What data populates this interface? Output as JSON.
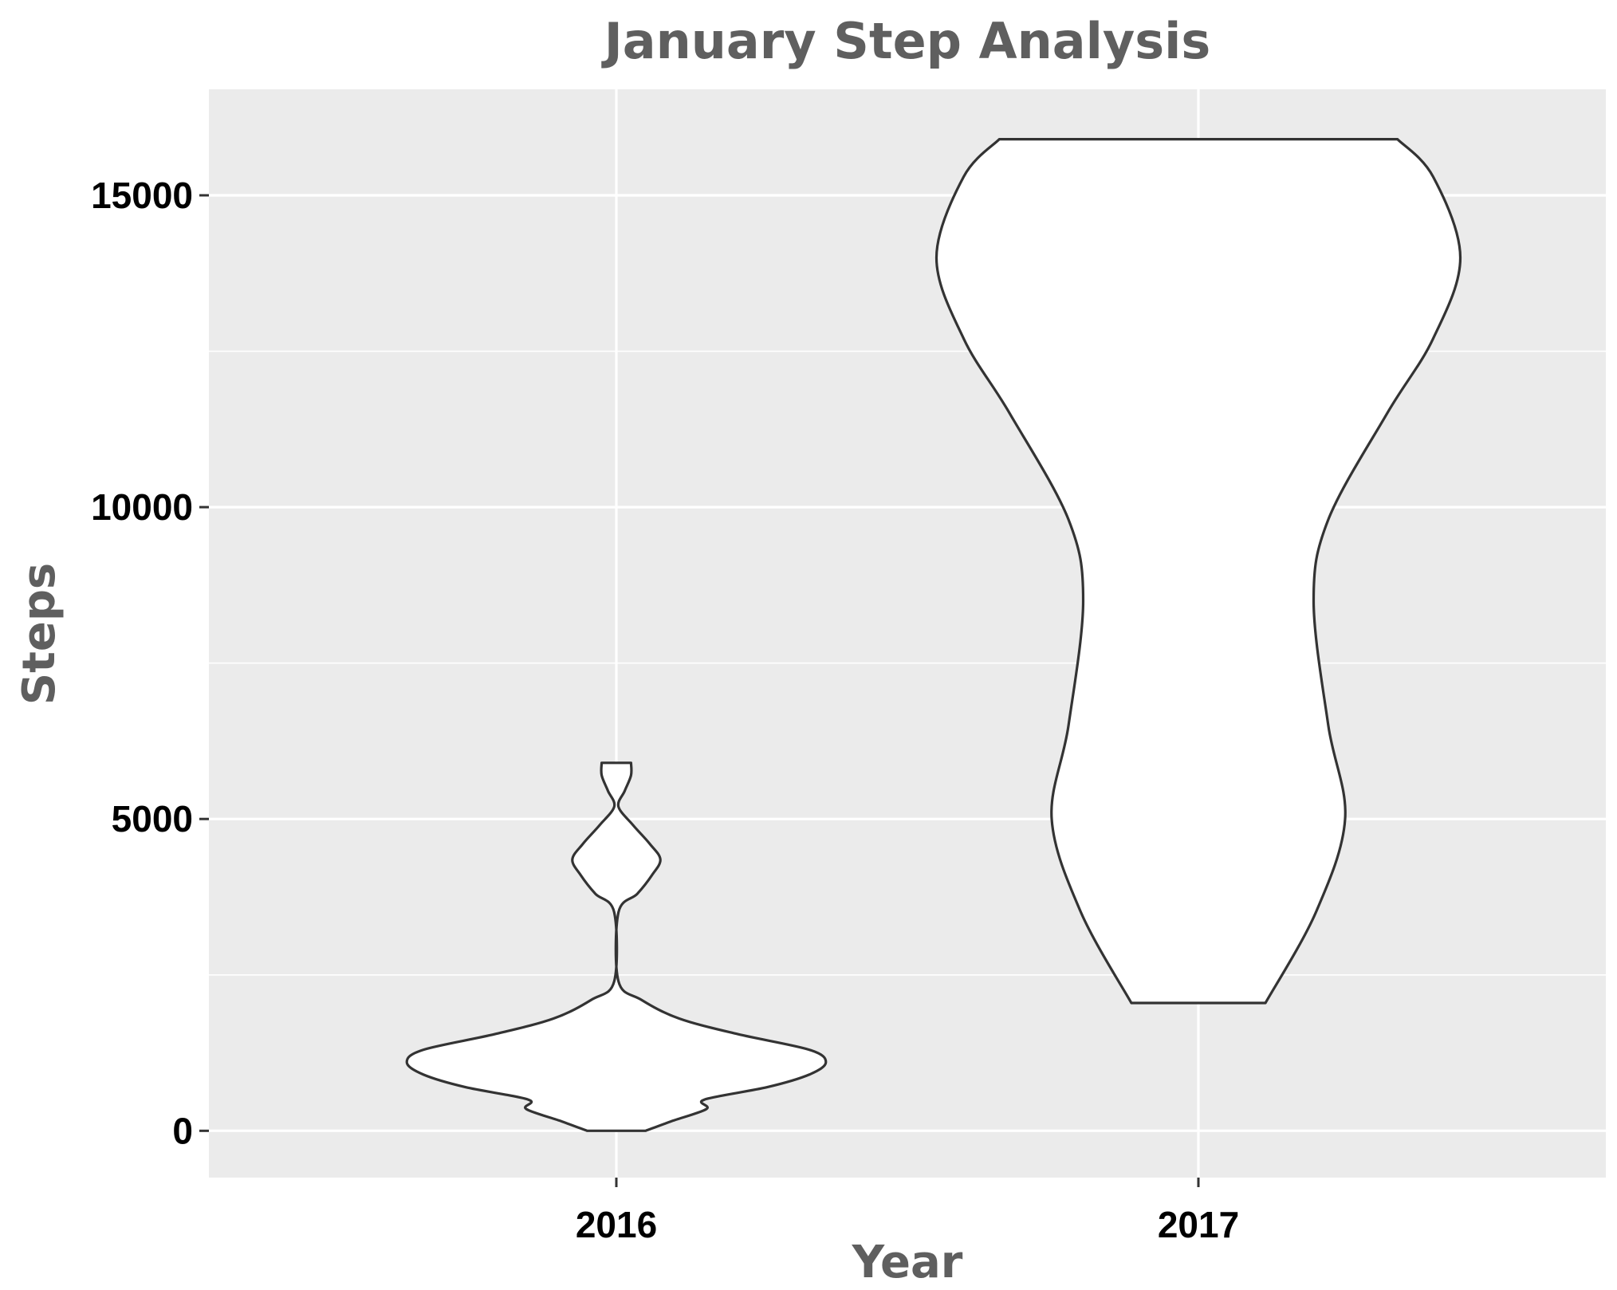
{
  "chart_data": {
    "type": "violin",
    "title": "January Step Analysis",
    "xlabel": "Year",
    "ylabel": "Steps",
    "categories": [
      "2016",
      "2017"
    ],
    "ylim": [
      -750,
      16700
    ],
    "yticks": [
      0,
      5000,
      10000,
      15000
    ],
    "grid": true,
    "legend": "none",
    "colors": {
      "panel_background": "#ebebeb",
      "grid": "#ffffff",
      "violin_fill": "#ffffff",
      "violin_outline": "#333333",
      "title_text": "#5f5f5f",
      "tick_text": "#000000"
    },
    "violins": [
      {
        "category": "2016",
        "min": 0,
        "max": 5900,
        "density_profile": [
          [
            0,
            0.14
          ],
          [
            150,
            0.26
          ],
          [
            350,
            0.43
          ],
          [
            500,
            0.42
          ],
          [
            700,
            0.72
          ],
          [
            900,
            0.92
          ],
          [
            1100,
            1.0
          ],
          [
            1300,
            0.92
          ],
          [
            1550,
            0.58
          ],
          [
            1800,
            0.3
          ],
          [
            2100,
            0.12
          ],
          [
            2400,
            0.01
          ],
          [
            3500,
            0.01
          ],
          [
            3800,
            0.1
          ],
          [
            4100,
            0.17
          ],
          [
            4350,
            0.21
          ],
          [
            4600,
            0.16
          ],
          [
            4900,
            0.08
          ],
          [
            5200,
            0.01
          ],
          [
            5450,
            0.04
          ],
          [
            5700,
            0.07
          ],
          [
            5900,
            0.07
          ]
        ]
      },
      {
        "category": "2017",
        "min": 2050,
        "max": 15900,
        "density_profile": [
          [
            2050,
            0.32
          ],
          [
            3500,
            0.56
          ],
          [
            5000,
            0.7
          ],
          [
            6500,
            0.62
          ],
          [
            8500,
            0.55
          ],
          [
            9800,
            0.62
          ],
          [
            11500,
            0.9
          ],
          [
            12700,
            1.12
          ],
          [
            14000,
            1.25
          ],
          [
            15300,
            1.12
          ],
          [
            15900,
            0.95
          ]
        ]
      }
    ]
  }
}
